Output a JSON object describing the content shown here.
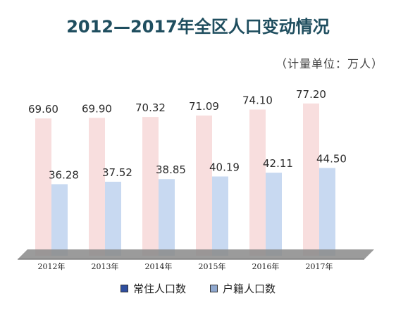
{
  "chart_data": {
    "type": "bar",
    "title": "2012—2017年全区人口变动情况",
    "unit_note": "（计量单位：万人）",
    "categories": [
      "2012年",
      "2013年",
      "2014年",
      "2015年",
      "2016年",
      "2017年"
    ],
    "series": [
      {
        "name": "常住人口数",
        "values": [
          69.6,
          69.9,
          70.32,
          71.09,
          74.1,
          77.2
        ],
        "labels": [
          "69.60",
          "69.90",
          "70.32",
          "71.09",
          "74.10",
          "77.20"
        ],
        "fill": "#f8dede",
        "legend_color": "#2f4f9f"
      },
      {
        "name": "户籍人口数",
        "values": [
          36.28,
          37.52,
          38.85,
          40.19,
          42.11,
          44.5
        ],
        "labels": [
          "36.28",
          "37.52",
          "38.85",
          "40.19",
          "42.11",
          "44.50"
        ],
        "fill": "#c8d9f1",
        "legend_color": "#8fa8cf"
      }
    ],
    "ylim": [
      0,
      90
    ],
    "grid": false,
    "legend_position": "bottom",
    "title_color": "#1f4e5f",
    "floor_color": "#8a8a8a"
  }
}
